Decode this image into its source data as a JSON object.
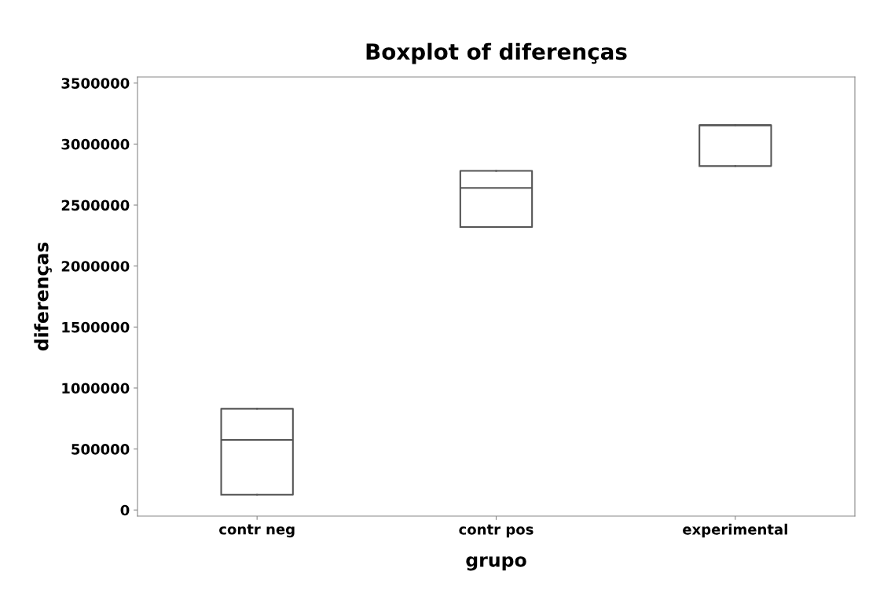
{
  "chart_data": {
    "type": "box",
    "title": "Boxplot of diferenças",
    "xlabel": "grupo",
    "ylabel": "diferenças",
    "categories": [
      "contr neg",
      "contr pos",
      "experimental"
    ],
    "boxes": [
      {
        "low": 125000,
        "q1": 125000,
        "median": 575000,
        "q3": 830000,
        "high": 830000
      },
      {
        "low": 2320000,
        "q1": 2320000,
        "median": 2640000,
        "q3": 2780000,
        "high": 2780000
      },
      {
        "low": 2820000,
        "q1": 2820000,
        "median": 3155000,
        "q3": 3155000,
        "high": 3155000
      }
    ],
    "color": "#555555",
    "ylim": [
      -50000,
      3550000
    ],
    "yticks": [
      0,
      500000,
      1000000,
      1500000,
      2000000,
      2500000,
      3000000,
      3500000
    ],
    "grid": false,
    "legend": false
  }
}
